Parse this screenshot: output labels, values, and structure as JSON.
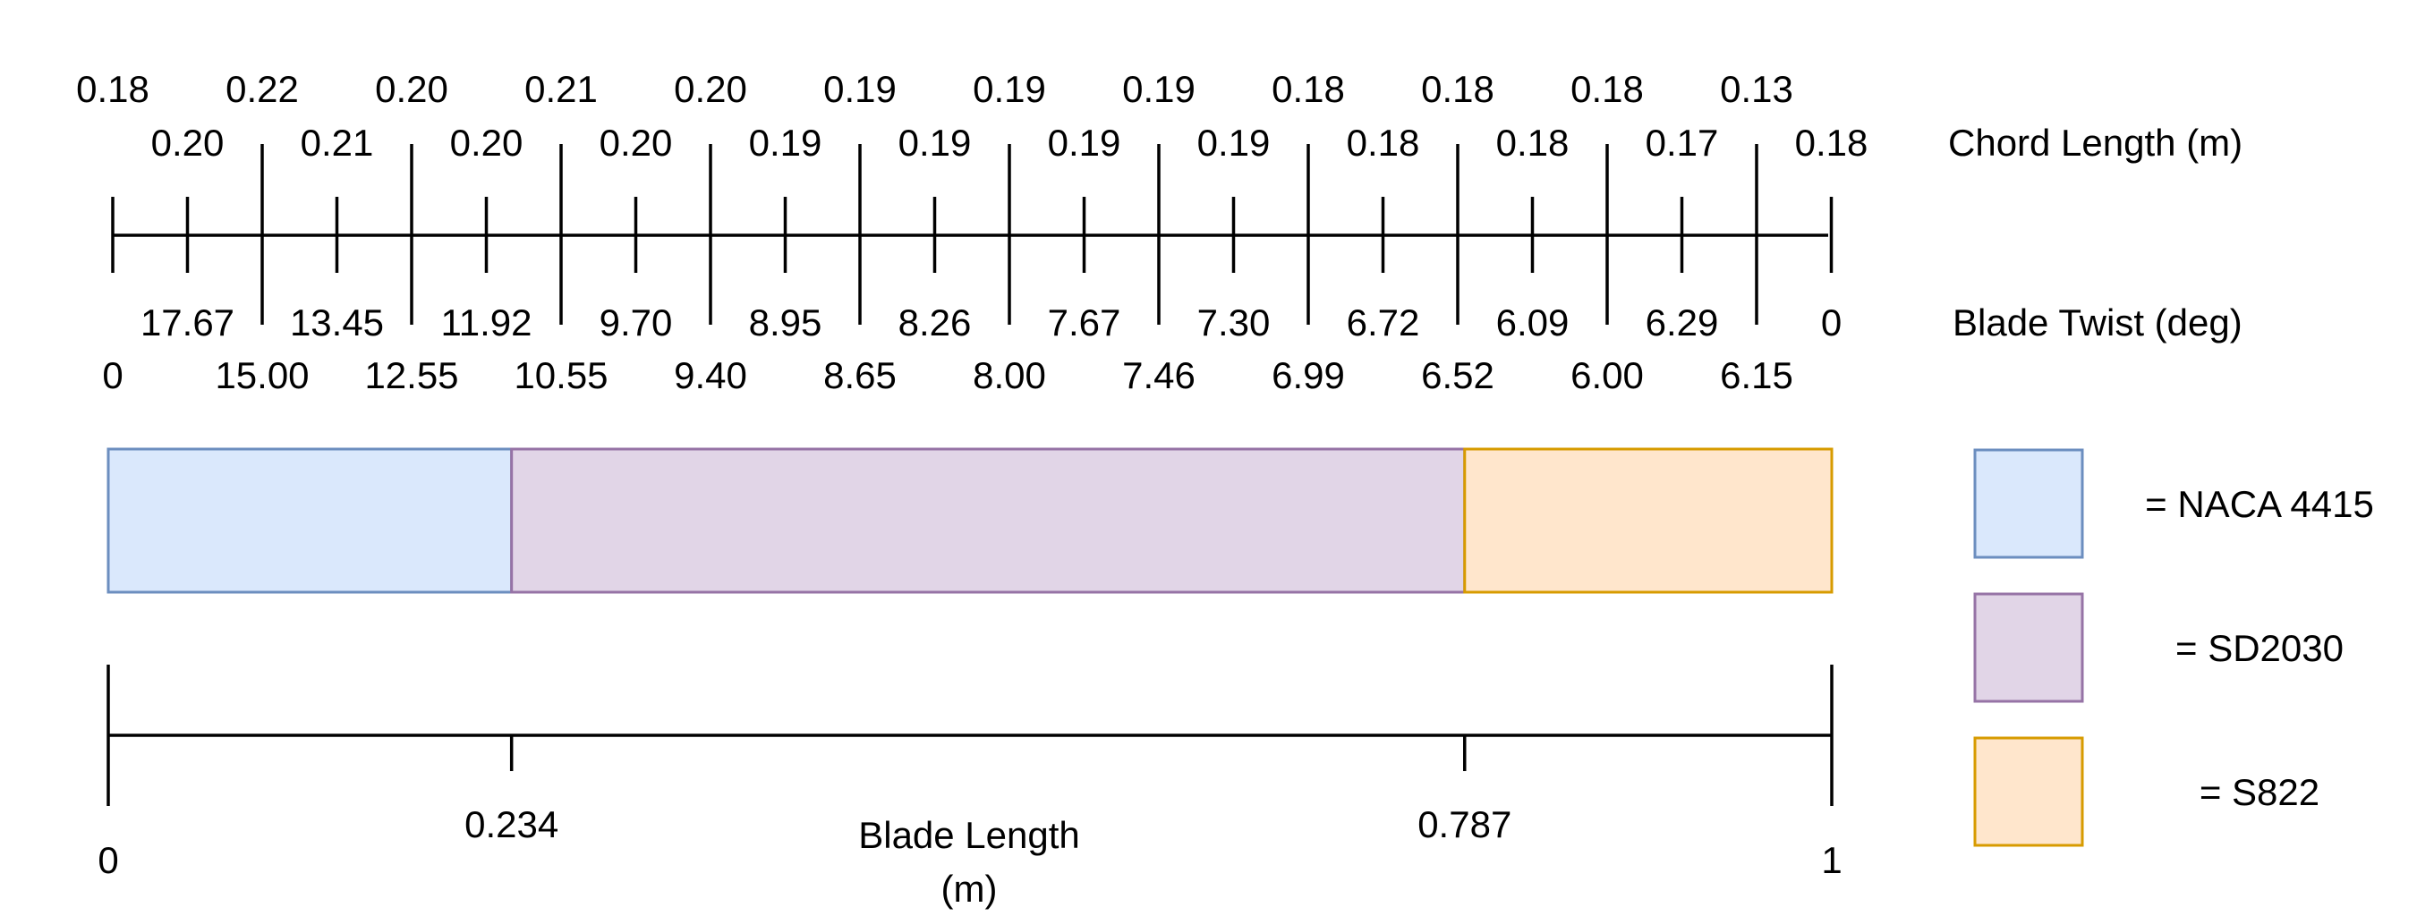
{
  "chord": {
    "label": "Chord Length (m)",
    "upper_values": [
      "0.18",
      "0.22",
      "0.20",
      "0.21",
      "0.20",
      "0.19",
      "0.19",
      "0.19",
      "0.18",
      "0.18",
      "0.18",
      "0.13"
    ],
    "lower_values": [
      "0.20",
      "0.21",
      "0.20",
      "0.20",
      "0.19",
      "0.19",
      "0.19",
      "0.19",
      "0.18",
      "0.18",
      "0.17",
      "0.18"
    ]
  },
  "twist": {
    "label": "Blade Twist (deg)",
    "upper_values": [
      "17.67",
      "13.45",
      "11.92",
      "9.70",
      "8.95",
      "8.26",
      "7.67",
      "7.30",
      "6.72",
      "6.09",
      "6.29",
      "0"
    ],
    "lower_values": [
      "0",
      "15.00",
      "12.55",
      "10.55",
      "9.40",
      "8.65",
      "8.00",
      "7.46",
      "6.99",
      "6.52",
      "6.00",
      "6.15"
    ]
  },
  "segments": [
    {
      "airfoil": "NACA 4415",
      "start": 0,
      "end": 0.234,
      "fill": "#dae8fc",
      "stroke": "#6c8ebf"
    },
    {
      "airfoil": "SD2030",
      "start": 0.234,
      "end": 0.787,
      "fill": "#e1d5e7",
      "stroke": "#9673a6"
    },
    {
      "airfoil": "S822",
      "start": 0.787,
      "end": 1,
      "fill": "#ffe6cc",
      "stroke": "#d79b00"
    }
  ],
  "legend": [
    {
      "label": "= NACA 4415",
      "fill": "#dae8fc",
      "stroke": "#6c8ebf"
    },
    {
      "label": "= SD2030",
      "fill": "#e1d5e7",
      "stroke": "#9673a6"
    },
    {
      "label": "= S822",
      "fill": "#ffe6cc",
      "stroke": "#d79b00"
    }
  ],
  "blade_length": {
    "title_line1": "Blade Length",
    "title_line2": "(m)",
    "ticks": [
      {
        "value": 0,
        "label": "0"
      },
      {
        "value": 0.234,
        "label": "0.234"
      },
      {
        "value": 0.787,
        "label": "0.787"
      },
      {
        "value": 1,
        "label": "1"
      }
    ]
  }
}
